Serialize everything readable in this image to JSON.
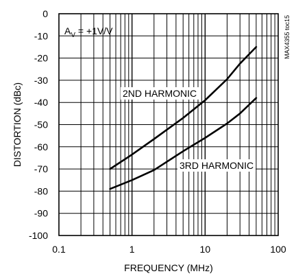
{
  "chart_data": {
    "type": "line",
    "title": "",
    "xlabel": "FREQUENCY (MHz)",
    "ylabel": "DISTORTION (dBc)",
    "x_scale": "log",
    "xlim": [
      0.1,
      100
    ],
    "ylim": [
      -100,
      0
    ],
    "grid": true,
    "x_ticks": [
      0.1,
      1,
      10,
      100
    ],
    "x_tick_labels": [
      "0.1",
      "1",
      "10",
      "100"
    ],
    "y_ticks": [
      0,
      -10,
      -20,
      -30,
      -40,
      -50,
      -60,
      -70,
      -80,
      -90,
      -100
    ],
    "y_tick_labels": [
      "0",
      "-10",
      "-20",
      "-30",
      "-40",
      "-50",
      "-60",
      "-70",
      "-80",
      "-90",
      "-100"
    ],
    "series": [
      {
        "name": "2ND HARMONIC",
        "x": [
          0.5,
          1,
          2,
          5,
          10,
          20,
          30,
          50
        ],
        "y": [
          -70,
          -63.5,
          -56.5,
          -47,
          -39,
          -29.5,
          -22.5,
          -15
        ]
      },
      {
        "name": "3RD HARMONIC",
        "x": [
          0.5,
          1,
          2,
          5,
          10,
          20,
          30,
          50
        ],
        "y": [
          -79,
          -75,
          -70.5,
          -62,
          -56,
          -49.5,
          -45,
          -38
        ]
      }
    ],
    "annotations": {
      "gain": {
        "prefix": "A",
        "subscript": "V",
        "suffix": " = +1V/V"
      },
      "series_label_1": "2ND HARMONIC",
      "series_label_2": "3RD HARMONIC",
      "side_tag": "MAX4355 toc15"
    },
    "colors": {
      "line": "#000000",
      "grid": "#000000",
      "background": "#ffffff"
    }
  }
}
